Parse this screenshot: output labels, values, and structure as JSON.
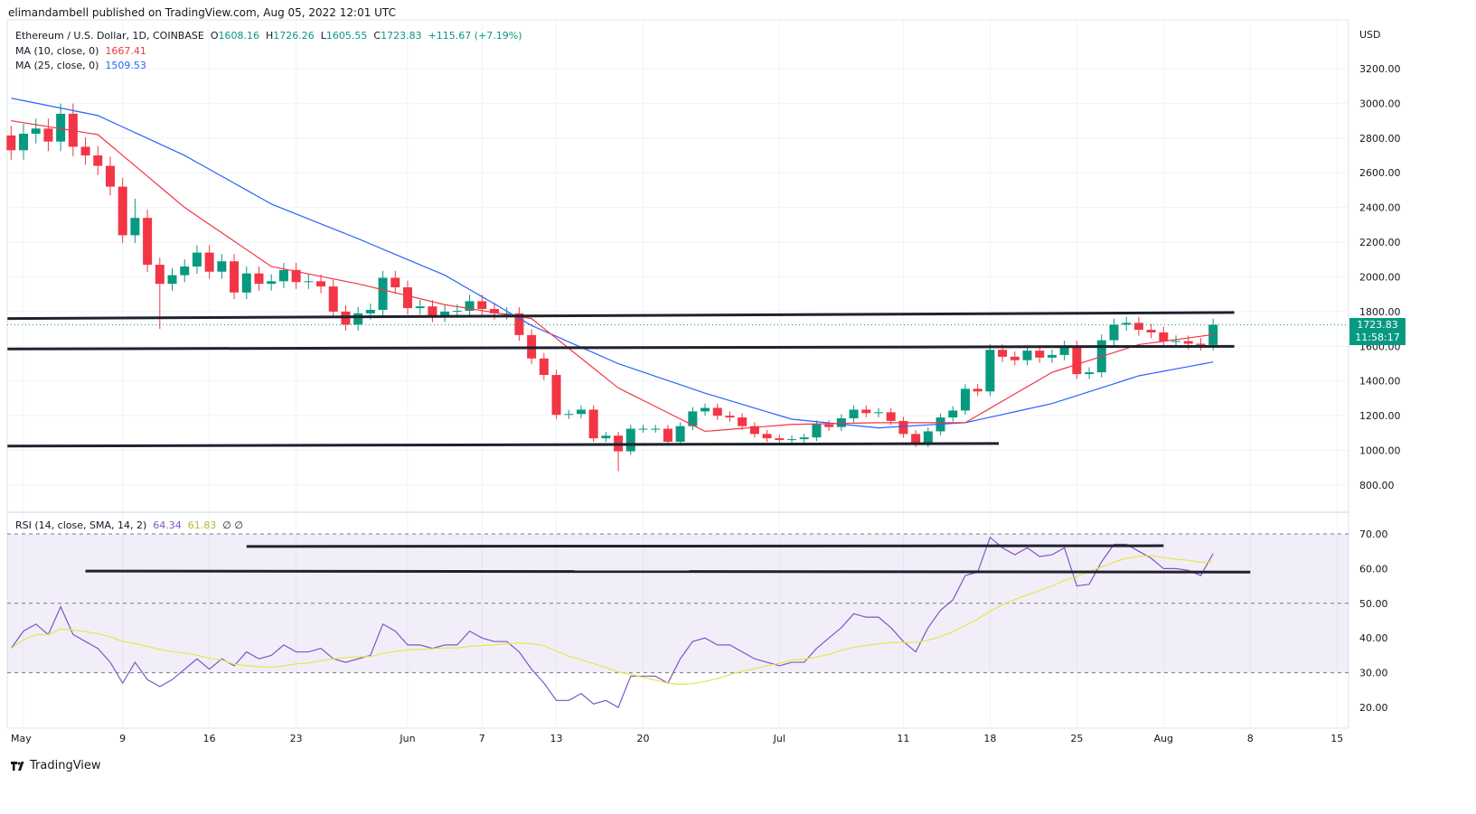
{
  "header": {
    "published": "elimandambell published on TradingView.com, Aug 05, 2022 12:01 UTC"
  },
  "legend": {
    "symbol": "Ethereum / U.S. Dollar, 1D, COINBASE",
    "open_label": "O",
    "open": "1608.16",
    "high_label": "H",
    "high": "1726.26",
    "low_label": "L",
    "low": "1605.55",
    "close_label": "C",
    "close": "1723.83",
    "change": "+115.67 (+7.19%)",
    "ma10_label": "MA (10, close, 0)",
    "ma10_value": "1667.41",
    "ma25_label": "MA (25, close, 0)",
    "ma25_value": "1509.53",
    "rsi_label": "RSI (14, close, SMA, 14, 2)",
    "rsi_value": "64.34",
    "rsi_sma_value": "61.83",
    "rsi_extra": "∅ ∅"
  },
  "price_box": {
    "price": "1723.83",
    "countdown": "11:58:17"
  },
  "footer": {
    "brand": "TradingView"
  },
  "colors": {
    "up": "#089981",
    "down": "#f23645",
    "ma10": "#f23645",
    "ma25": "#2962ff",
    "rsi": "#7e57c2",
    "rsi_sma": "#e3e84a",
    "levels": "#1e222d"
  },
  "chart_data": {
    "type": "candlestick",
    "title": "Ethereum / U.S. Dollar, 1D, COINBASE",
    "currency_label": "USD",
    "x_start_day": -1,
    "first_open": 2815,
    "closes": [
      2730,
      2825,
      2855,
      2780,
      2940,
      2750,
      2700,
      2640,
      2520,
      2240,
      2340,
      2070,
      1960,
      2010,
      2060,
      2140,
      2030,
      2090,
      1910,
      2020,
      1960,
      1975,
      2040,
      1970,
      1975,
      1945,
      1800,
      1725,
      1790,
      1810,
      1995,
      1940,
      1820,
      1830,
      1775,
      1800,
      1805,
      1860,
      1815,
      1790,
      1790,
      1665,
      1530,
      1435,
      1205,
      1210,
      1235,
      1070,
      1085,
      995,
      1125,
      1125,
      1125,
      1050,
      1140,
      1225,
      1245,
      1200,
      1190,
      1140,
      1095,
      1070,
      1060,
      1065,
      1075,
      1150,
      1135,
      1185,
      1235,
      1215,
      1220,
      1170,
      1095,
      1040,
      1110,
      1190,
      1230,
      1355,
      1340,
      1580,
      1540,
      1520,
      1575,
      1535,
      1550,
      1600,
      1440,
      1450,
      1635,
      1725,
      1735,
      1695,
      1680,
      1630,
      1630,
      1615,
      1608,
      1723.83
    ],
    "wick_overrides": [
      {
        "day": 11,
        "low": 1700
      },
      {
        "day": 48,
        "low": 880
      },
      {
        "day": 9,
        "high": 2450
      }
    ],
    "ma10": {
      "days": [
        -1,
        6,
        13,
        20,
        27,
        34,
        41,
        48,
        55,
        62,
        69,
        76,
        83,
        90,
        96
      ],
      "values": [
        2900,
        2820,
        2400,
        2060,
        1960,
        1840,
        1760,
        1360,
        1110,
        1150,
        1160,
        1160,
        1450,
        1610,
        1667.41
      ]
    },
    "ma25": {
      "days": [
        -1,
        6,
        13,
        20,
        27,
        34,
        41,
        48,
        55,
        62,
        69,
        76,
        83,
        90,
        96
      ],
      "values": [
        3030,
        2930,
        2700,
        2420,
        2220,
        2010,
        1720,
        1500,
        1330,
        1180,
        1130,
        1160,
        1270,
        1430,
        1509.53
      ]
    },
    "horizontal_levels": [
      {
        "from_day": -1,
        "to_day": 98,
        "from": 1760,
        "to": 1795
      },
      {
        "from_day": -1,
        "to_day": 98,
        "from": 1585,
        "to": 1600
      },
      {
        "from_day": -1,
        "to_day": 79,
        "from": 1025,
        "to": 1040
      }
    ],
    "price_axis": {
      "ticks": [
        "3200.00",
        "3000.00",
        "2800.00",
        "2600.00",
        "2400.00",
        "2200.00",
        "2000.00",
        "1800.00",
        "1600.00",
        "1400.00",
        "1200.00",
        "1000.00",
        "800.00"
      ],
      "range": [
        800,
        3200
      ]
    },
    "x_axis": {
      "ticks": [
        {
          "day": 0,
          "label": "May"
        },
        {
          "day": 8,
          "label": "9"
        },
        {
          "day": 15,
          "label": "16"
        },
        {
          "day": 22,
          "label": "23"
        },
        {
          "day": 31,
          "label": "Jun"
        },
        {
          "day": 37,
          "label": "7"
        },
        {
          "day": 43,
          "label": "13"
        },
        {
          "day": 50,
          "label": "20"
        },
        {
          "day": 61,
          "label": "Jul"
        },
        {
          "day": 71,
          "label": "11"
        },
        {
          "day": 78,
          "label": "18"
        },
        {
          "day": 85,
          "label": "25"
        },
        {
          "day": 92,
          "label": "Aug"
        },
        {
          "day": 99,
          "label": "8"
        },
        {
          "day": 106,
          "label": "15"
        }
      ]
    },
    "rsi": {
      "values": [
        37,
        42,
        44,
        41,
        49,
        41,
        39,
        37,
        33,
        27,
        33,
        28,
        26,
        28,
        31,
        34,
        31,
        34,
        32,
        36,
        34,
        35,
        38,
        36,
        36,
        37,
        34,
        33,
        34,
        35,
        44,
        42,
        38,
        38,
        37,
        38,
        38,
        42,
        40,
        39,
        39,
        36,
        31,
        27,
        22,
        22,
        24,
        21,
        22,
        20,
        29,
        29,
        29,
        27,
        34,
        39,
        40,
        38,
        38,
        36,
        34,
        33,
        32,
        33,
        33,
        37,
        40,
        43,
        47,
        46,
        46,
        43,
        39,
        36,
        43,
        48,
        51,
        58,
        59,
        69,
        66,
        64,
        66,
        63.5,
        64,
        66,
        55,
        55.5,
        62,
        67,
        67,
        65,
        63,
        60,
        60,
        59.5,
        58,
        64.34
      ],
      "sma_period": 14,
      "axis_ticks": [
        "70.00",
        "60.00",
        "50.00",
        "40.00",
        "30.00",
        "20.00"
      ],
      "bands": [
        70,
        50,
        30
      ],
      "levels": [
        {
          "from_day": 18,
          "to_day": 92,
          "from": 66.4,
          "to": 66.6
        },
        {
          "from_day": 5,
          "to_day": 99,
          "from": 59.3,
          "to": 59.0
        }
      ]
    }
  }
}
